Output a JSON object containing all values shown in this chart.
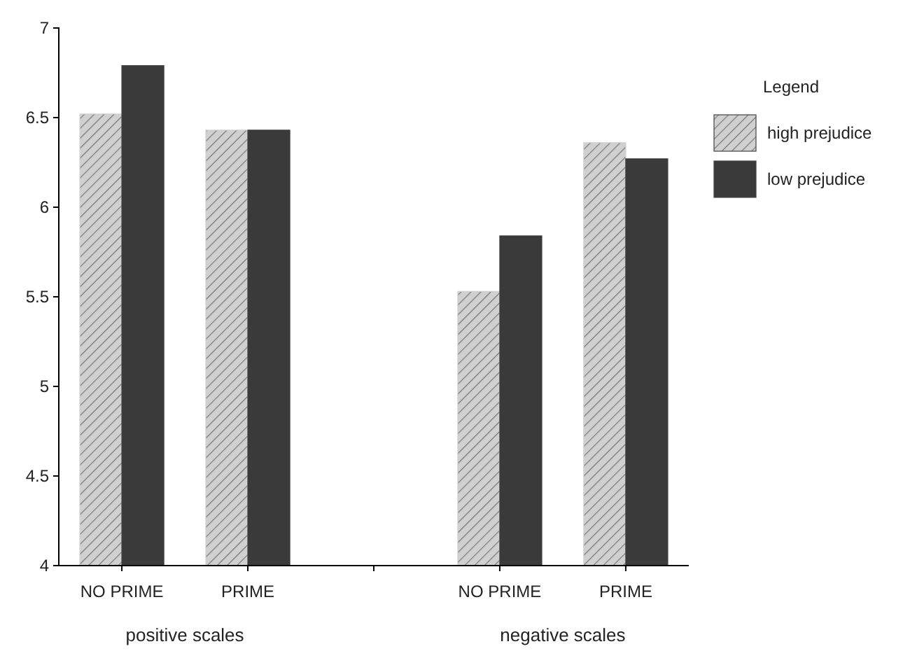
{
  "chart_data": {
    "type": "bar",
    "categories": [
      "NO PRIME",
      "PRIME",
      null,
      "NO PRIME",
      "PRIME"
    ],
    "series": [
      {
        "name": "high prejudice",
        "color": "#d0d0d0",
        "values": [
          6.52,
          6.43,
          null,
          5.53,
          6.36
        ]
      },
      {
        "name": "low prejudice",
        "color": "#3a3a3a",
        "values": [
          6.79,
          6.43,
          null,
          5.84,
          6.27
        ]
      }
    ],
    "ylim": [
      4,
      7
    ],
    "yticks": [
      4,
      4.5,
      5,
      5.5,
      6,
      6.5,
      7
    ],
    "legend_title": "Legend",
    "legend": "right",
    "annotations": [
      "positive scales",
      "negative scales"
    ]
  }
}
